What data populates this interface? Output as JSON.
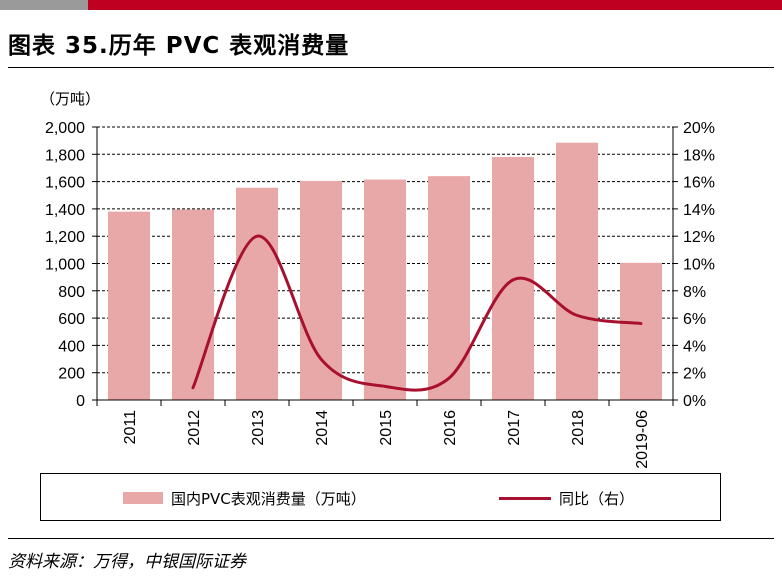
{
  "title": "图表 35.历年 PVC 表观消费量",
  "unit_label": "（万吨）",
  "source": "资料来源：万得，中银国际证券",
  "colors": {
    "bar": "#e9a8a8",
    "line": "#a8102f",
    "brand_red": "#c00020",
    "brand_gray": "#9a9a9a"
  },
  "chart_data": {
    "type": "bar",
    "categories": [
      "2011",
      "2012",
      "2013",
      "2014",
      "2015",
      "2016",
      "2017",
      "2018",
      "2019-06"
    ],
    "series": [
      {
        "name": "国内PVC表观消费量（万吨）",
        "type": "bar",
        "axis": "left",
        "values": [
          1380,
          1395,
          1555,
          1605,
          1615,
          1640,
          1780,
          1885,
          1005
        ]
      },
      {
        "name": "同比（右）",
        "type": "line",
        "axis": "right",
        "values": [
          null,
          0.9,
          12.0,
          3.0,
          1.0,
          1.6,
          8.8,
          6.2,
          5.6
        ]
      }
    ],
    "left_ticks": [
      "0",
      "200",
      "400",
      "600",
      "800",
      "1,000",
      "1,200",
      "1,400",
      "1,600",
      "1,800",
      "2,000"
    ],
    "right_ticks": [
      "0%",
      "2%",
      "4%",
      "6%",
      "8%",
      "10%",
      "12%",
      "14%",
      "16%",
      "18%",
      "20%"
    ],
    "ylim_left": [
      0,
      2000
    ],
    "ylim_right": [
      0,
      20
    ],
    "grid": true,
    "legend_position": "bottom"
  }
}
